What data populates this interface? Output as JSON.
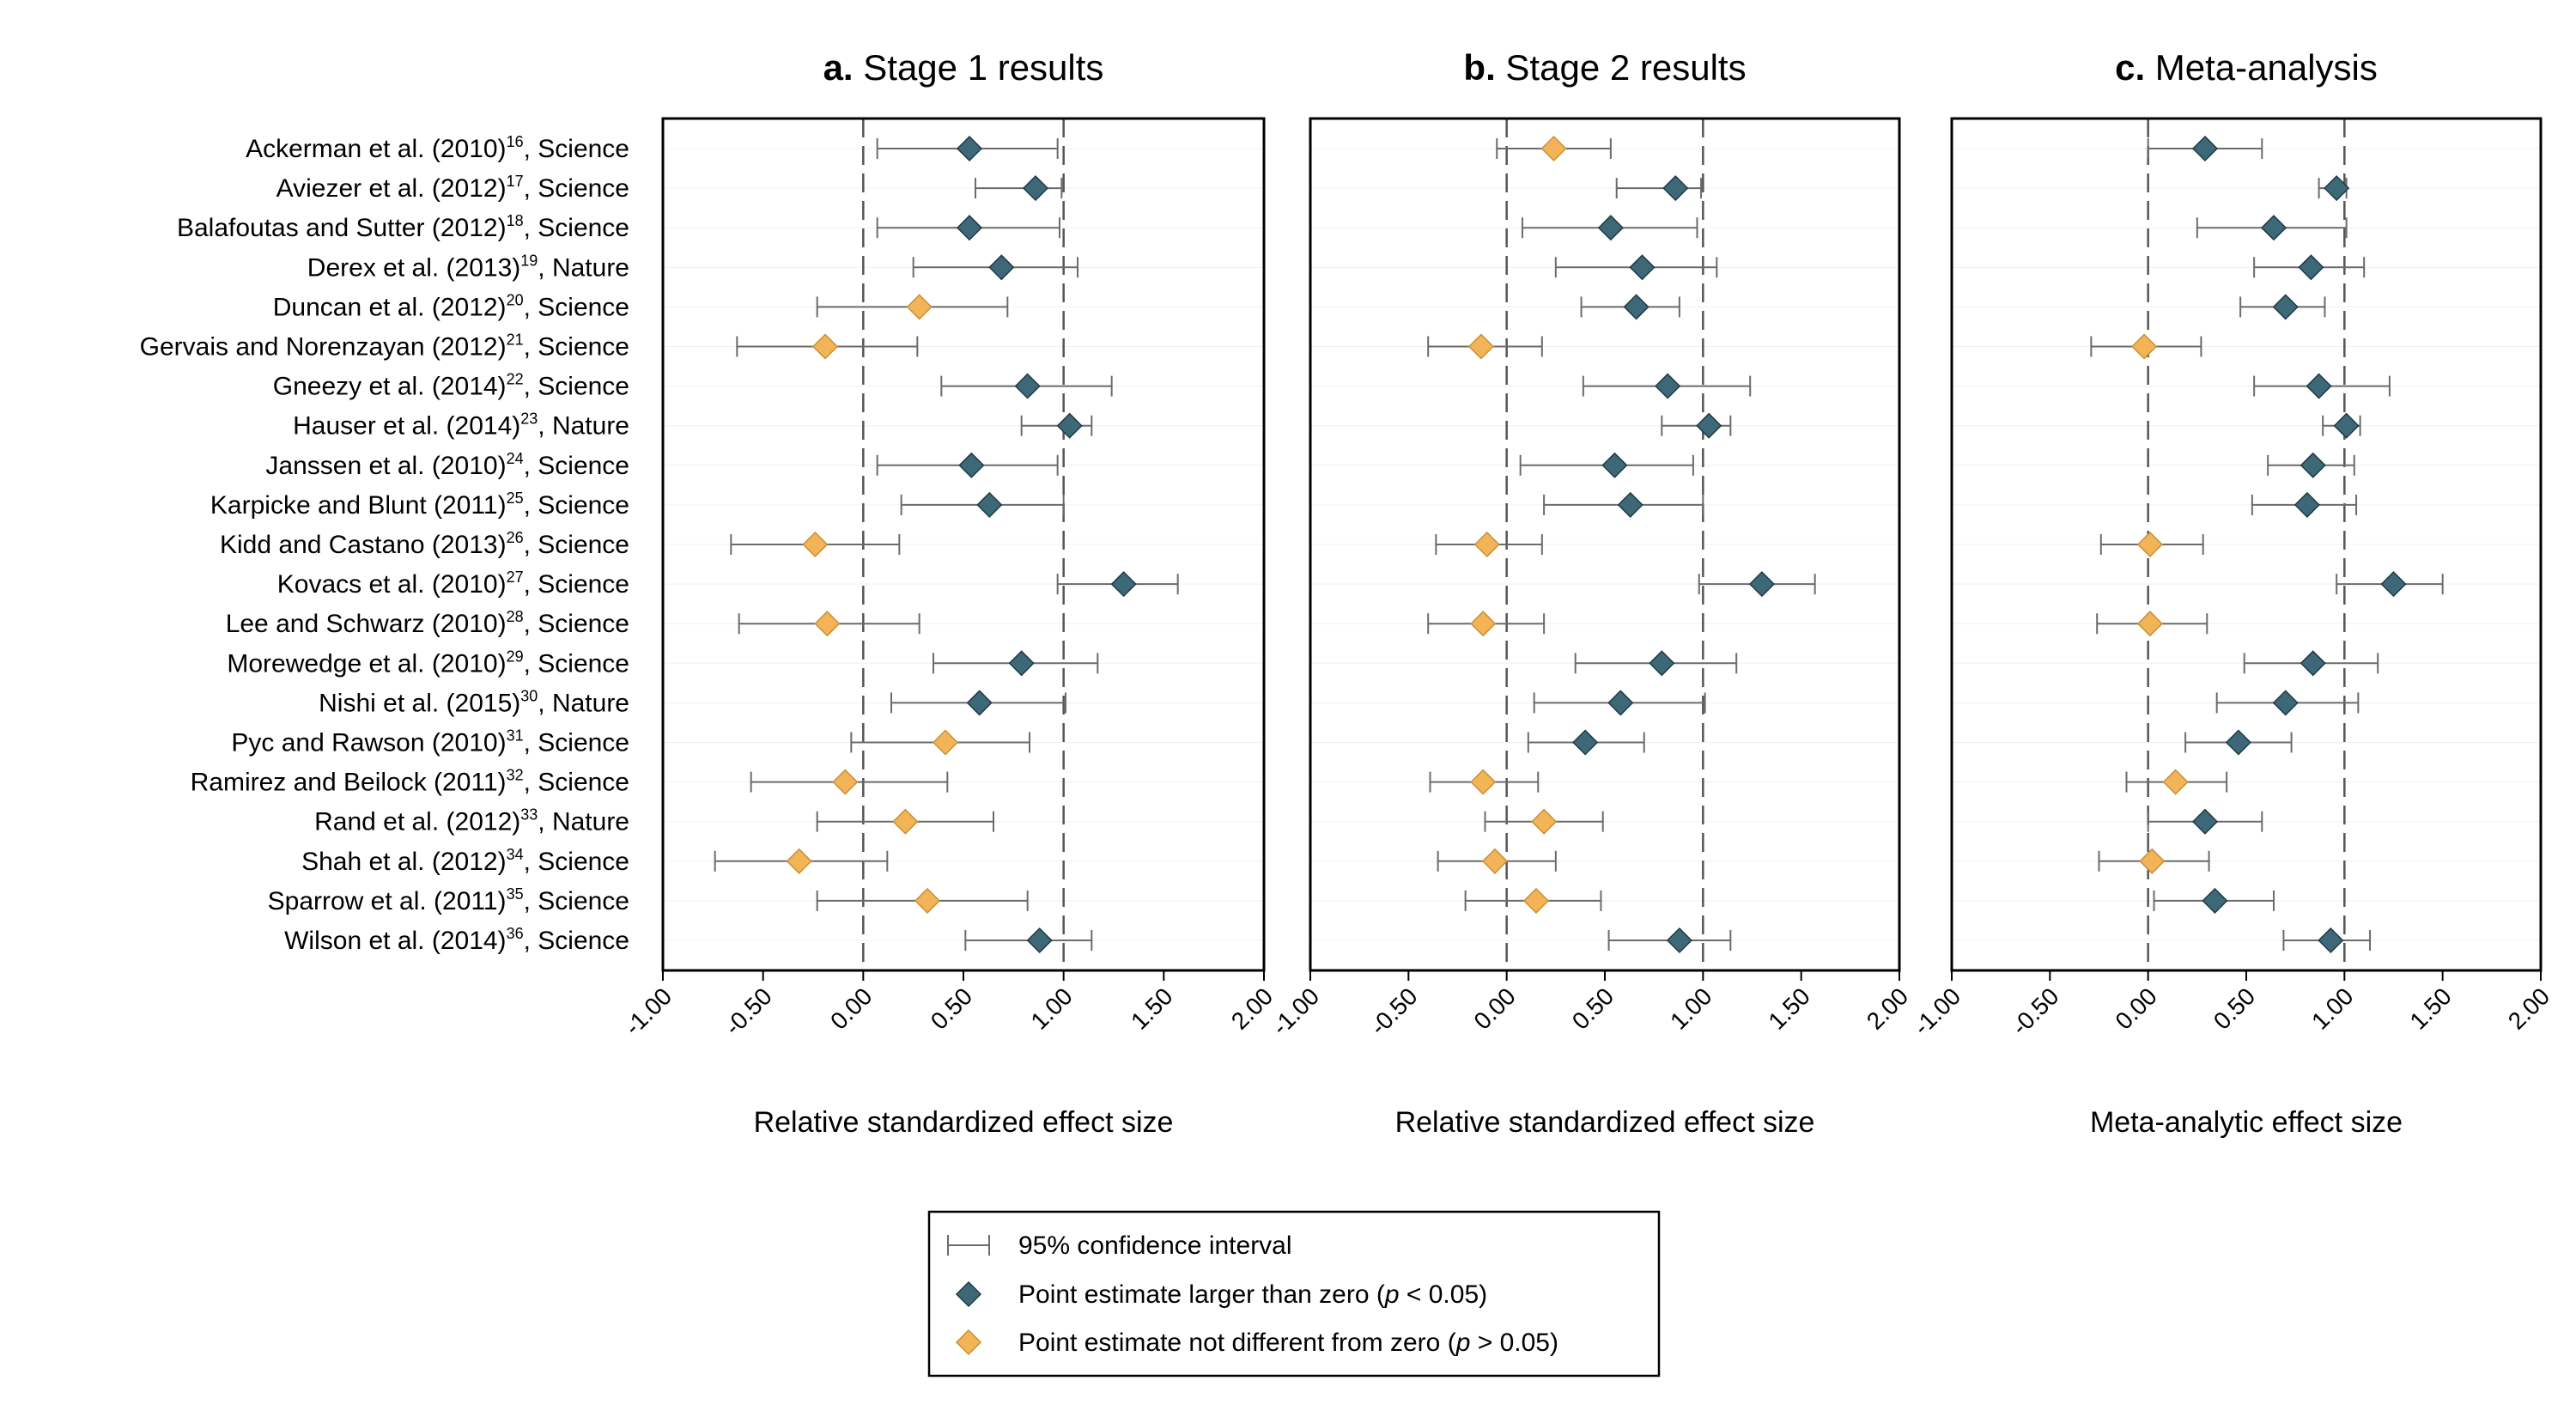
{
  "chart_data": {
    "type": "forest",
    "studies": [
      {
        "authors": "Ackerman et al. (2010)",
        "ref": "16",
        "journal": ", Science"
      },
      {
        "authors": "Aviezer et al. (2012)",
        "ref": "17",
        "journal": ", Science"
      },
      {
        "authors": "Balafoutas and Sutter (2012)",
        "ref": "18",
        "journal": ", Science"
      },
      {
        "authors": "Derex et al. (2013)",
        "ref": "19",
        "journal": ", Nature"
      },
      {
        "authors": "Duncan et al. (2012)",
        "ref": "20",
        "journal": ", Science"
      },
      {
        "authors": "Gervais and Norenzayan (2012)",
        "ref": "21",
        "journal": ", Science"
      },
      {
        "authors": "Gneezy et al. (2014)",
        "ref": "22",
        "journal": ", Science"
      },
      {
        "authors": "Hauser et al. (2014)",
        "ref": "23",
        "journal": ", Nature"
      },
      {
        "authors": "Janssen et al. (2010)",
        "ref": "24",
        "journal": ", Science"
      },
      {
        "authors": "Karpicke and Blunt (2011)",
        "ref": "25",
        "journal": ", Science"
      },
      {
        "authors": "Kidd and Castano (2013)",
        "ref": "26",
        "journal": ", Science"
      },
      {
        "authors": "Kovacs et al. (2010)",
        "ref": "27",
        "journal": ", Science"
      },
      {
        "authors": "Lee and Schwarz (2010)",
        "ref": "28",
        "journal": ", Science"
      },
      {
        "authors": "Morewedge et al. (2010)",
        "ref": "29",
        "journal": ", Science"
      },
      {
        "authors": "Nishi et al. (2015)",
        "ref": "30",
        "journal": ", Nature"
      },
      {
        "authors": "Pyc and Rawson (2010)",
        "ref": "31",
        "journal": ", Science"
      },
      {
        "authors": "Ramirez and Beilock (2011)",
        "ref": "32",
        "journal": ", Science"
      },
      {
        "authors": "Rand et al. (2012)",
        "ref": "33",
        "journal": ", Nature"
      },
      {
        "authors": "Shah et al. (2012)",
        "ref": "34",
        "journal": ", Science"
      },
      {
        "authors": "Sparrow et al. (2011)",
        "ref": "35",
        "journal": ", Science"
      },
      {
        "authors": "Wilson et al. (2014)",
        "ref": "36",
        "journal": ", Science"
      }
    ],
    "xlim": [
      -1.0,
      2.0
    ],
    "xticks": [
      -1.0,
      -0.5,
      0.0,
      0.5,
      1.0,
      1.5,
      2.0
    ],
    "xtick_labels": [
      "-1.00",
      "-0.50",
      "0.00",
      "0.50",
      "1.00",
      "1.50",
      "2.00"
    ],
    "reference_lines": [
      0.0,
      1.0
    ],
    "colors": {
      "significant": "#3d6878",
      "not_significant": "#f2b457",
      "ci": "#6b6b6b",
      "reference": "#555555",
      "frame": "#000000"
    },
    "panels": [
      {
        "letter": "a.",
        "title": "Stage 1 results",
        "xlabel": "Relative standardized effect size",
        "points": [
          {
            "est": 0.53,
            "lo": 0.07,
            "hi": 0.97,
            "sig": true
          },
          {
            "est": 0.86,
            "lo": 0.56,
            "hi": 0.99,
            "sig": true
          },
          {
            "est": 0.53,
            "lo": 0.07,
            "hi": 0.98,
            "sig": true
          },
          {
            "est": 0.69,
            "lo": 0.25,
            "hi": 1.07,
            "sig": true
          },
          {
            "est": 0.28,
            "lo": -0.23,
            "hi": 0.72,
            "sig": false
          },
          {
            "est": -0.19,
            "lo": -0.63,
            "hi": 0.27,
            "sig": false
          },
          {
            "est": 0.82,
            "lo": 0.39,
            "hi": 1.24,
            "sig": true
          },
          {
            "est": 1.03,
            "lo": 0.79,
            "hi": 1.14,
            "sig": true
          },
          {
            "est": 0.54,
            "lo": 0.07,
            "hi": 0.97,
            "sig": true
          },
          {
            "est": 0.63,
            "lo": 0.19,
            "hi": 1.0,
            "sig": true
          },
          {
            "est": -0.24,
            "lo": -0.66,
            "hi": 0.18,
            "sig": false
          },
          {
            "est": 1.3,
            "lo": 0.97,
            "hi": 1.57,
            "sig": true
          },
          {
            "est": -0.18,
            "lo": -0.62,
            "hi": 0.28,
            "sig": false
          },
          {
            "est": 0.79,
            "lo": 0.35,
            "hi": 1.17,
            "sig": true
          },
          {
            "est": 0.58,
            "lo": 0.14,
            "hi": 1.01,
            "sig": true
          },
          {
            "est": 0.41,
            "lo": -0.06,
            "hi": 0.83,
            "sig": false
          },
          {
            "est": -0.09,
            "lo": -0.56,
            "hi": 0.42,
            "sig": false
          },
          {
            "est": 0.21,
            "lo": -0.23,
            "hi": 0.65,
            "sig": false
          },
          {
            "est": -0.32,
            "lo": -0.74,
            "hi": 0.12,
            "sig": false
          },
          {
            "est": 0.32,
            "lo": -0.23,
            "hi": 0.82,
            "sig": false
          },
          {
            "est": 0.88,
            "lo": 0.51,
            "hi": 1.14,
            "sig": true
          }
        ]
      },
      {
        "letter": "b.",
        "title": "Stage 2 results",
        "xlabel": "Relative standardized effect size",
        "points": [
          {
            "est": 0.24,
            "lo": -0.05,
            "hi": 0.53,
            "sig": false
          },
          {
            "est": 0.86,
            "lo": 0.56,
            "hi": 0.99,
            "sig": true
          },
          {
            "est": 0.53,
            "lo": 0.08,
            "hi": 0.97,
            "sig": true
          },
          {
            "est": 0.69,
            "lo": 0.25,
            "hi": 1.07,
            "sig": true
          },
          {
            "est": 0.66,
            "lo": 0.38,
            "hi": 0.88,
            "sig": true
          },
          {
            "est": -0.13,
            "lo": -0.4,
            "hi": 0.18,
            "sig": false
          },
          {
            "est": 0.82,
            "lo": 0.39,
            "hi": 1.24,
            "sig": true
          },
          {
            "est": 1.03,
            "lo": 0.79,
            "hi": 1.14,
            "sig": true
          },
          {
            "est": 0.55,
            "lo": 0.07,
            "hi": 0.95,
            "sig": true
          },
          {
            "est": 0.63,
            "lo": 0.19,
            "hi": 1.0,
            "sig": true
          },
          {
            "est": -0.1,
            "lo": -0.36,
            "hi": 0.18,
            "sig": false
          },
          {
            "est": 1.3,
            "lo": 0.98,
            "hi": 1.57,
            "sig": true
          },
          {
            "est": -0.12,
            "lo": -0.4,
            "hi": 0.19,
            "sig": false
          },
          {
            "est": 0.79,
            "lo": 0.35,
            "hi": 1.17,
            "sig": true
          },
          {
            "est": 0.58,
            "lo": 0.14,
            "hi": 1.01,
            "sig": true
          },
          {
            "est": 0.4,
            "lo": 0.11,
            "hi": 0.7,
            "sig": true
          },
          {
            "est": -0.12,
            "lo": -0.39,
            "hi": 0.16,
            "sig": false
          },
          {
            "est": 0.19,
            "lo": -0.11,
            "hi": 0.49,
            "sig": false
          },
          {
            "est": -0.06,
            "lo": -0.35,
            "hi": 0.25,
            "sig": false
          },
          {
            "est": 0.15,
            "lo": -0.21,
            "hi": 0.48,
            "sig": false
          },
          {
            "est": 0.88,
            "lo": 0.52,
            "hi": 1.14,
            "sig": true
          }
        ]
      },
      {
        "letter": "c.",
        "title": "Meta-analysis",
        "xlabel": "Meta-analytic effect size",
        "points": [
          {
            "est": 0.29,
            "lo": 0.0,
            "hi": 0.58,
            "sig": true
          },
          {
            "est": 0.96,
            "lo": 0.87,
            "hi": 1.01,
            "sig": true
          },
          {
            "est": 0.64,
            "lo": 0.25,
            "hi": 1.01,
            "sig": true
          },
          {
            "est": 0.83,
            "lo": 0.54,
            "hi": 1.1,
            "sig": true
          },
          {
            "est": 0.7,
            "lo": 0.47,
            "hi": 0.9,
            "sig": true
          },
          {
            "est": -0.02,
            "lo": -0.29,
            "hi": 0.27,
            "sig": false
          },
          {
            "est": 0.87,
            "lo": 0.54,
            "hi": 1.23,
            "sig": true
          },
          {
            "est": 1.01,
            "lo": 0.89,
            "hi": 1.08,
            "sig": true
          },
          {
            "est": 0.84,
            "lo": 0.61,
            "hi": 1.05,
            "sig": true
          },
          {
            "est": 0.81,
            "lo": 0.53,
            "hi": 1.06,
            "sig": true
          },
          {
            "est": 0.01,
            "lo": -0.24,
            "hi": 0.28,
            "sig": false
          },
          {
            "est": 1.25,
            "lo": 0.96,
            "hi": 1.5,
            "sig": true
          },
          {
            "est": 0.01,
            "lo": -0.26,
            "hi": 0.3,
            "sig": false
          },
          {
            "est": 0.84,
            "lo": 0.49,
            "hi": 1.17,
            "sig": true
          },
          {
            "est": 0.7,
            "lo": 0.35,
            "hi": 1.07,
            "sig": true
          },
          {
            "est": 0.46,
            "lo": 0.19,
            "hi": 0.73,
            "sig": true
          },
          {
            "est": 0.14,
            "lo": -0.11,
            "hi": 0.4,
            "sig": false
          },
          {
            "est": 0.29,
            "lo": 0.0,
            "hi": 0.58,
            "sig": true
          },
          {
            "est": 0.02,
            "lo": -0.25,
            "hi": 0.31,
            "sig": false
          },
          {
            "est": 0.34,
            "lo": 0.03,
            "hi": 0.64,
            "sig": true
          },
          {
            "est": 0.93,
            "lo": 0.69,
            "hi": 1.13,
            "sig": true
          }
        ]
      }
    ],
    "legend": {
      "ci_label": "95% confidence interval",
      "sig_label_pre": "Point estimate larger than zero (",
      "sig_label_p": "p",
      "sig_label_post": " < 0.05)",
      "ns_label_pre": "Point estimate not different from zero (",
      "ns_label_p": "p",
      "ns_label_post": " > 0.05)",
      "placement": "bottom-center"
    }
  }
}
